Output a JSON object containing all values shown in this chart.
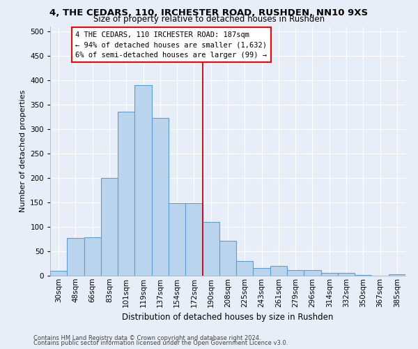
{
  "title1": "4, THE CEDARS, 110, IRCHESTER ROAD, RUSHDEN, NN10 9XS",
  "title2": "Size of property relative to detached houses in Rushden",
  "xlabel": "Distribution of detached houses by size in Rushden",
  "ylabel": "Number of detached properties",
  "footer1": "Contains HM Land Registry data © Crown copyright and database right 2024.",
  "footer2": "Contains public sector information licensed under the Open Government Licence v3.0.",
  "bin_labels": [
    "30sqm",
    "48sqm",
    "66sqm",
    "83sqm",
    "101sqm",
    "119sqm",
    "137sqm",
    "154sqm",
    "172sqm",
    "190sqm",
    "208sqm",
    "225sqm",
    "243sqm",
    "261sqm",
    "279sqm",
    "296sqm",
    "314sqm",
    "332sqm",
    "350sqm",
    "367sqm",
    "385sqm"
  ],
  "bar_heights": [
    10,
    77,
    78,
    200,
    335,
    390,
    322,
    148,
    148,
    110,
    72,
    30,
    15,
    20,
    12,
    12,
    5,
    5,
    2,
    0,
    3
  ],
  "bar_color": "#bad4ed",
  "bar_edge_color": "#5a9fd4",
  "vline_x": 8.5,
  "vline_color": "#cc0000",
  "annotation_text": "4 THE CEDARS, 110 IRCHESTER ROAD: 187sqm\n← 94% of detached houses are smaller (1,632)\n6% of semi-detached houses are larger (99) →",
  "annotation_box_color": "red",
  "ylim": [
    0,
    510
  ],
  "yticks": [
    0,
    50,
    100,
    150,
    200,
    250,
    300,
    350,
    400,
    450,
    500
  ],
  "background_color": "#e8eef8",
  "grid_color": "#ffffff",
  "title1_fontsize": 9.5,
  "title2_fontsize": 8.5,
  "ylabel_fontsize": 8,
  "xlabel_fontsize": 8.5,
  "tick_fontsize": 7.5,
  "footer_fontsize": 6.0,
  "annot_fontsize": 7.5
}
